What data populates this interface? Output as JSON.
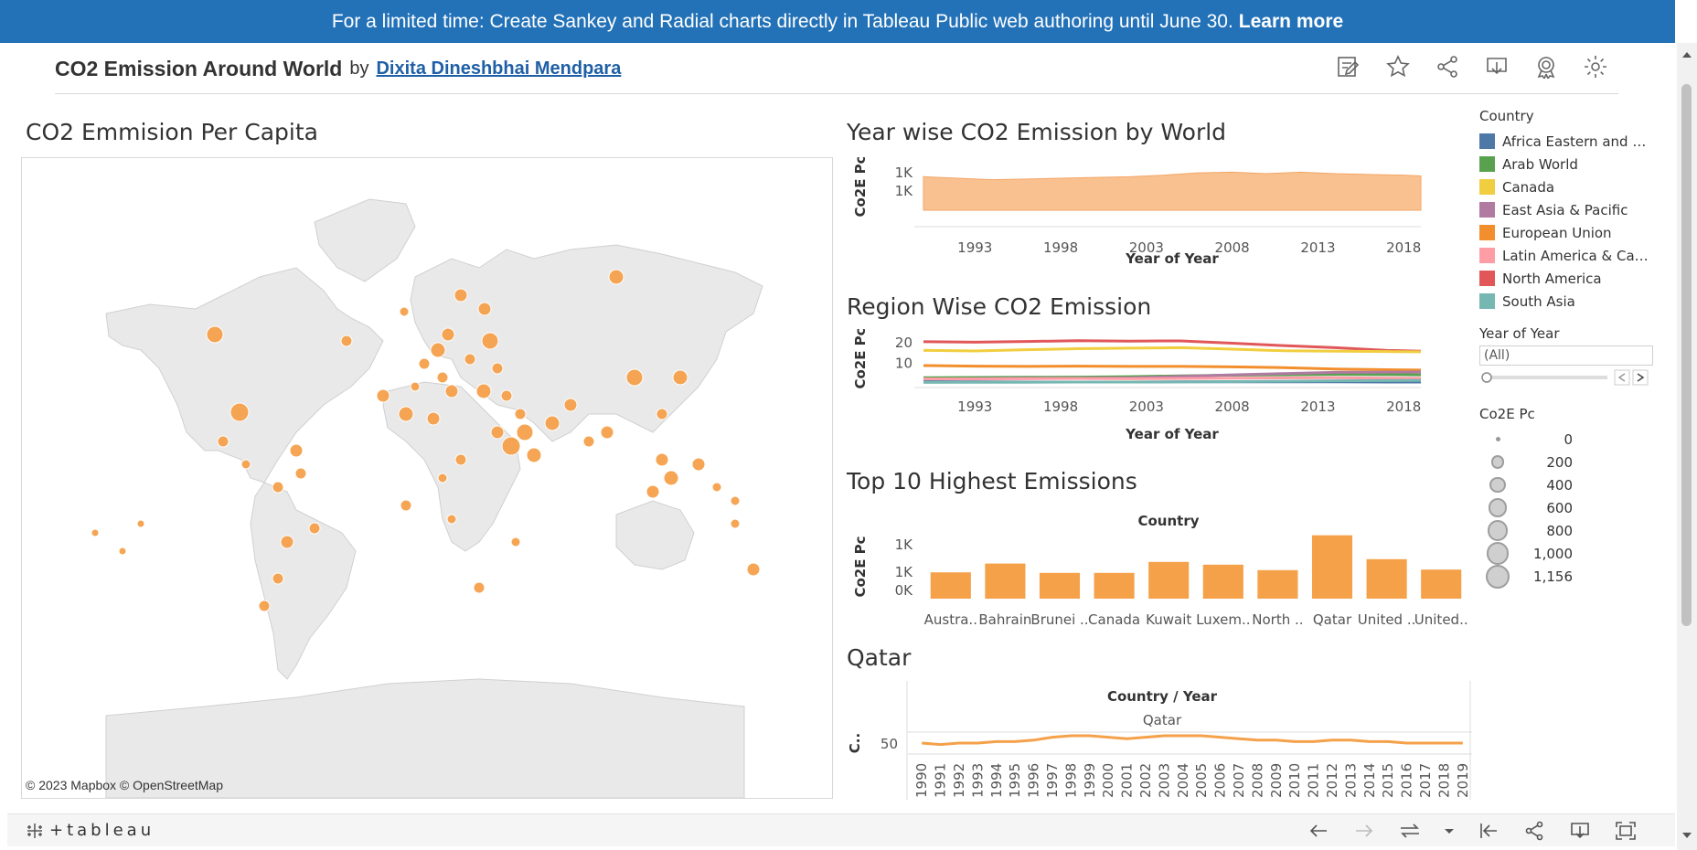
{
  "banner": {
    "text": "For a limited time: Create Sankey and Radial charts directly in Tableau Public web authoring until June 30.",
    "link": "Learn more"
  },
  "header": {
    "title": "CO2 Emission Around World",
    "by": "by",
    "author": "Dixita Dineshbhai Mendpara",
    "icons": [
      "edit-data-icon",
      "star-icon",
      "share-icon",
      "download-icon",
      "badge-icon",
      "settings-icon"
    ]
  },
  "map": {
    "title": "CO2 Emmision Per Capita",
    "credit": "© 2023 Mapbox  © OpenStreetMap"
  },
  "chart_data": [
    {
      "type": "area",
      "title": "Year wise CO2 Emission by World",
      "xlabel": "Year of Year",
      "ylabel": "Co2E Pc",
      "x_ticks": [
        "1993",
        "1998",
        "2003",
        "2008",
        "2013",
        "2018"
      ],
      "y_ticks": [
        "1K",
        "1K"
      ],
      "x": [
        1990,
        1992,
        1994,
        1996,
        1998,
        2000,
        2002,
        2004,
        2006,
        2008,
        2010,
        2012,
        2014,
        2016,
        2018,
        2019
      ],
      "values": [
        1120,
        1110,
        1100,
        1105,
        1110,
        1115,
        1120,
        1130,
        1145,
        1150,
        1140,
        1150,
        1140,
        1135,
        1130,
        1125
      ],
      "color": "#f9c18f"
    },
    {
      "type": "line",
      "title": "Region Wise CO2 Emission",
      "xlabel": "Year of Year",
      "ylabel": "Co2E Pc",
      "x_ticks": [
        "1993",
        "1998",
        "2003",
        "2008",
        "2013",
        "2018"
      ],
      "y_ticks": [
        "20",
        "10"
      ],
      "x": [
        1990,
        1993,
        1996,
        1999,
        2002,
        2005,
        2008,
        2011,
        2014,
        2017,
        2019
      ],
      "series": [
        {
          "name": "North America",
          "color": "#e15759",
          "values": [
            20.5,
            20.3,
            20.6,
            21.0,
            20.8,
            20.9,
            19.8,
            18.6,
            17.6,
            16.3,
            15.9
          ]
        },
        {
          "name": "Canada",
          "color": "#f1ce3f",
          "values": [
            16.3,
            16.0,
            16.6,
            17.1,
            17.4,
            17.6,
            16.9,
            16.1,
            15.9,
            15.7,
            15.6
          ]
        },
        {
          "name": "European Union",
          "color": "#f28e2b",
          "values": [
            8.9,
            8.6,
            8.5,
            8.6,
            8.5,
            8.5,
            8.3,
            7.9,
            7.2,
            6.9,
            6.7
          ]
        },
        {
          "name": "Arab World",
          "color": "#59a14f",
          "values": [
            3.0,
            3.1,
            3.2,
            3.3,
            3.5,
            3.9,
            4.2,
            4.4,
            4.6,
            4.5,
            4.4
          ]
        },
        {
          "name": "East Asia & Pacific",
          "color": "#b07aa1",
          "values": [
            2.2,
            2.5,
            2.7,
            2.7,
            2.9,
            3.6,
            4.4,
            5.0,
            5.6,
            5.7,
            5.8
          ]
        },
        {
          "name": "Latin America & Caribbean",
          "color": "#ff9da7",
          "values": [
            2.4,
            2.4,
            2.5,
            2.6,
            2.5,
            2.6,
            2.8,
            2.9,
            3.0,
            2.8,
            2.7
          ]
        },
        {
          "name": "Africa Eastern and Southern",
          "color": "#4e79a7",
          "values": [
            1.0,
            1.0,
            0.9,
            0.9,
            0.9,
            1.0,
            1.0,
            1.0,
            1.0,
            0.9,
            0.9
          ]
        },
        {
          "name": "South Asia",
          "color": "#76b7b2",
          "values": [
            0.7,
            0.8,
            0.8,
            0.9,
            0.9,
            1.0,
            1.1,
            1.3,
            1.5,
            1.6,
            1.7
          ]
        }
      ]
    },
    {
      "type": "bar",
      "title": "Top 10 Highest Emissions",
      "xlabel": "Country",
      "ylabel": "Co2E Pc",
      "y_ticks": [
        "1K",
        "1K",
        "0K"
      ],
      "categories": [
        "Austra..",
        "Bahrain",
        "Brunei ..",
        "Canada",
        "Kuwait",
        "Luxem..",
        "North ..",
        "Qatar",
        "United ..",
        "United.."
      ],
      "values": [
        480,
        640,
        470,
        470,
        670,
        620,
        520,
        1156,
        720,
        530
      ],
      "color": "#f5a14a"
    },
    {
      "type": "line",
      "title": "Qatar",
      "xlabel": "Country / Year",
      "panel": "Qatar",
      "ylabel": "C..",
      "y_ticks": [
        "50"
      ],
      "x": [
        "1990",
        "1991",
        "1992",
        "1993",
        "1994",
        "1995",
        "1996",
        "1997",
        "1998",
        "1999",
        "2000",
        "2001",
        "2002",
        "2003",
        "2004",
        "2005",
        "2006",
        "2007",
        "2008",
        "2009",
        "2010",
        "2011",
        "2012",
        "2013",
        "2014",
        "2015",
        "2016",
        "2017",
        "2018",
        "2019"
      ],
      "values": [
        48,
        47,
        48,
        48,
        49,
        49,
        50,
        52,
        53,
        53,
        52,
        51,
        52,
        53,
        53,
        53,
        52,
        51,
        50,
        50,
        49,
        49,
        50,
        50,
        49,
        49,
        48,
        48,
        48,
        48
      ],
      "color": "#f5a14a"
    }
  ],
  "legend": {
    "title": "Country",
    "items": [
      {
        "label": "Africa Eastern and S...",
        "color": "#4e79a7"
      },
      {
        "label": "Arab World",
        "color": "#59a14f"
      },
      {
        "label": "Canada",
        "color": "#f1ce3f"
      },
      {
        "label": "East Asia & Pacific",
        "color": "#b07aa1"
      },
      {
        "label": "European Union",
        "color": "#f28e2b"
      },
      {
        "label": "Latin America & Cari...",
        "color": "#ff9da7"
      },
      {
        "label": "North America",
        "color": "#e15759"
      },
      {
        "label": "South Asia",
        "color": "#76b7b2"
      }
    ]
  },
  "year_filter": {
    "title": "Year of Year",
    "value": "(All)"
  },
  "size_legend": {
    "title": "Co2E Pc",
    "items": [
      {
        "label": "0",
        "value": 0
      },
      {
        "label": "200",
        "value": 200
      },
      {
        "label": "400",
        "value": 400
      },
      {
        "label": "600",
        "value": 600
      },
      {
        "label": "800",
        "value": 800
      },
      {
        "label": "1,000",
        "value": 1000
      },
      {
        "label": "1,156",
        "value": 1156
      }
    ]
  },
  "bottom": {
    "logo": "+tableau",
    "icons": [
      "undo-icon",
      "redo-icon",
      "revert-icon",
      "dropdown-icon",
      "reset-icon",
      "share-icon",
      "download-icon",
      "fullscreen-icon"
    ]
  },
  "accent": "#2372b8",
  "mark_color": "#f5a14a"
}
